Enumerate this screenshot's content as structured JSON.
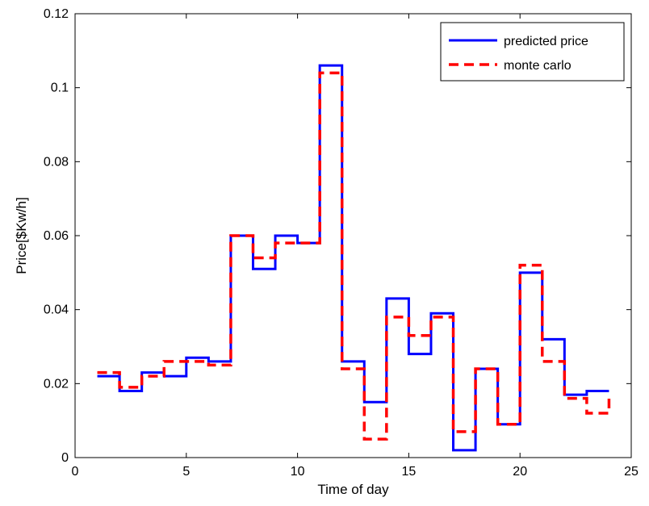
{
  "chart_data": {
    "type": "line",
    "step": true,
    "title": "",
    "xlabel": "Time of day",
    "ylabel": "Price[$Kw/h]",
    "xlim": [
      0,
      25
    ],
    "ylim": [
      0,
      0.12
    ],
    "xticks": [
      0,
      5,
      10,
      15,
      20,
      25
    ],
    "xtick_labels": [
      "0",
      "5",
      "10",
      "15",
      "20",
      "25"
    ],
    "yticks": [
      0,
      0.02,
      0.04,
      0.06,
      0.08,
      0.1,
      0.12
    ],
    "ytick_labels": [
      "0",
      "0.02",
      "0.04",
      "0.06",
      "0.08",
      "0.1",
      "0.12"
    ],
    "grid": false,
    "legend_position": "top-right",
    "x": [
      1,
      2,
      3,
      4,
      5,
      6,
      7,
      8,
      9,
      10,
      11,
      12,
      13,
      14,
      15,
      16,
      17,
      18,
      19,
      20,
      21,
      22,
      23,
      24
    ],
    "series": [
      {
        "name": "predicted price",
        "color": "#0000ff",
        "dash": "solid",
        "values": [
          0.022,
          0.018,
          0.023,
          0.022,
          0.027,
          0.026,
          0.06,
          0.051,
          0.06,
          0.058,
          0.106,
          0.026,
          0.015,
          0.043,
          0.028,
          0.039,
          0.002,
          0.024,
          0.009,
          0.05,
          0.032,
          0.017,
          0.018,
          0.018
        ]
      },
      {
        "name": "monte carlo",
        "color": "#ff0000",
        "dash": "dashed",
        "values": [
          0.023,
          0.019,
          0.022,
          0.026,
          0.026,
          0.025,
          0.06,
          0.054,
          0.058,
          0.058,
          0.104,
          0.024,
          0.005,
          0.038,
          0.033,
          0.038,
          0.007,
          0.024,
          0.009,
          0.052,
          0.026,
          0.016,
          0.012,
          0.017
        ]
      }
    ]
  }
}
